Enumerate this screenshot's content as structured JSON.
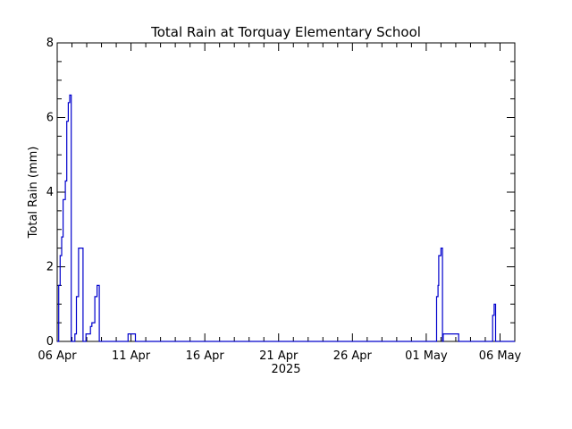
{
  "chart_data": {
    "type": "line",
    "step": true,
    "title": "Total Rain at Torquay Elementary School",
    "xlabel": "2025",
    "ylabel": "Total Rain (mm)",
    "xlim": [
      0,
      31
    ],
    "ylim": [
      0,
      8
    ],
    "x_ticks": [
      {
        "day": 0,
        "label": "06 Apr"
      },
      {
        "day": 5,
        "label": "11 Apr"
      },
      {
        "day": 10,
        "label": "16 Apr"
      },
      {
        "day": 15,
        "label": "21 Apr"
      },
      {
        "day": 20,
        "label": "26 Apr"
      },
      {
        "day": 25,
        "label": "01 May"
      },
      {
        "day": 30,
        "label": "06 May"
      }
    ],
    "y_ticks": [
      0,
      2,
      4,
      6,
      8
    ],
    "line_color": "#0000cc",
    "series": [
      {
        "x": [
          0.0,
          0.1,
          0.2,
          0.3,
          0.4,
          0.55,
          0.65,
          0.75,
          0.85,
          0.95,
          1.05,
          1.2,
          1.3,
          1.45,
          1.6,
          1.75,
          1.95,
          2.05,
          2.25,
          2.3,
          2.35,
          2.45,
          2.55,
          2.7,
          2.85,
          3.0,
          3.2,
          3.6,
          4.8,
          5.1,
          5.3,
          25.5,
          25.7,
          25.8,
          25.85,
          26.0,
          26.05,
          26.1,
          26.15,
          26.2,
          26.3,
          26.4,
          26.9,
          27.2,
          29.4,
          29.5,
          29.6,
          29.7,
          29.8,
          31.0
        ],
        "values": [
          0,
          1.5,
          2.3,
          2.8,
          3.8,
          4.3,
          5.9,
          6.4,
          6.6,
          0,
          0,
          0.2,
          1.2,
          2.5,
          2.5,
          0,
          0.2,
          0.2,
          0.4,
          0.4,
          0.5,
          0.5,
          1.2,
          1.5,
          0,
          0,
          0,
          0,
          0.2,
          0.2,
          0,
          0,
          1.2,
          1.5,
          2.3,
          2.5,
          2.5,
          0,
          0.2,
          0.2,
          0.2,
          0.2,
          0.2,
          0,
          0,
          0.7,
          1.0,
          0,
          0,
          0
        ]
      }
    ]
  }
}
